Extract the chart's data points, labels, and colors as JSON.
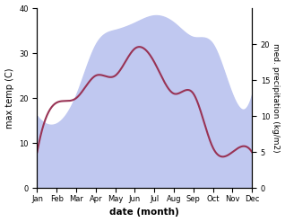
{
  "months": [
    "Jan",
    "Feb",
    "Mar",
    "Apr",
    "May",
    "Jun",
    "Jul",
    "Aug",
    "Sep",
    "Oct",
    "Nov",
    "Dec"
  ],
  "month_positions": [
    0,
    1,
    2,
    3,
    4,
    5,
    6,
    7,
    8,
    9,
    10,
    11
  ],
  "max_temp": [
    8,
    19,
    20,
    25,
    25,
    31,
    28,
    21,
    21,
    9,
    8,
    8
  ],
  "precipitation": [
    10,
    9,
    13,
    20,
    22,
    23,
    24,
    23,
    21,
    20,
    13,
    13
  ],
  "temp_color": "#993355",
  "precip_fill_color": "#c0c8f0",
  "left_ylim": [
    0,
    40
  ],
  "right_ylim": [
    0,
    25
  ],
  "left_yticks": [
    0,
    10,
    20,
    30,
    40
  ],
  "right_yticks": [
    0,
    5,
    10,
    15,
    20
  ],
  "xlabel": "date (month)",
  "ylabel_left": "max temp (C)",
  "ylabel_right": "med. precipitation (kg/m2)",
  "background_color": "#ffffff"
}
